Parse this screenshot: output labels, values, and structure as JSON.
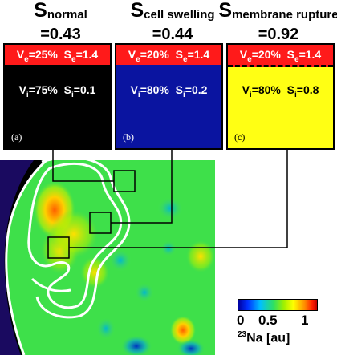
{
  "titles": [
    {
      "symbol": "S",
      "sub": "normal",
      "value": "=0.43"
    },
    {
      "symbol": "S",
      "sub": "cell swelling",
      "value": "=0.44"
    },
    {
      "symbol": "S",
      "sub": "membrane rupture",
      "value": "=0.92"
    }
  ],
  "panels": [
    {
      "ve": "V",
      "ve_sub": "e",
      "ve_val": "=25%",
      "se": "S",
      "se_sub": "e",
      "se_val": "=1.4",
      "vi": "V",
      "vi_sub": "i",
      "vi_val": "=75%",
      "si": "S",
      "si_sub": "i",
      "si_val": "=0.1",
      "tag": "(a)",
      "bg": "#000000",
      "fg": "#ffffff"
    },
    {
      "ve": "V",
      "ve_sub": "e",
      "ve_val": "=20%",
      "se": "S",
      "se_sub": "e",
      "se_val": "=1.4",
      "vi": "V",
      "vi_sub": "i",
      "vi_val": "=80%",
      "si": "S",
      "si_sub": "i",
      "si_val": "=0.2",
      "tag": "(b)",
      "bg": "#0a14a0",
      "fg": "#ffffff"
    },
    {
      "ve": "V",
      "ve_sub": "e",
      "ve_val": "=20%",
      "se": "S",
      "se_sub": "e",
      "se_val": "=1.4",
      "vi": "V",
      "vi_sub": "i",
      "vi_val": "=80%",
      "si": "S",
      "si_sub": "i",
      "si_val": "=0.8",
      "tag": "(c)",
      "bg": "#ffff14",
      "fg": "#000000"
    }
  ],
  "colorbar": {
    "ticks": [
      "0",
      "0.5",
      "1"
    ],
    "unit_sup": "23",
    "unit": "Na [au]"
  },
  "colors": {
    "extracellular": "#ff1a1a",
    "contour": "#ffffff",
    "map_green": "#3ee04a"
  }
}
